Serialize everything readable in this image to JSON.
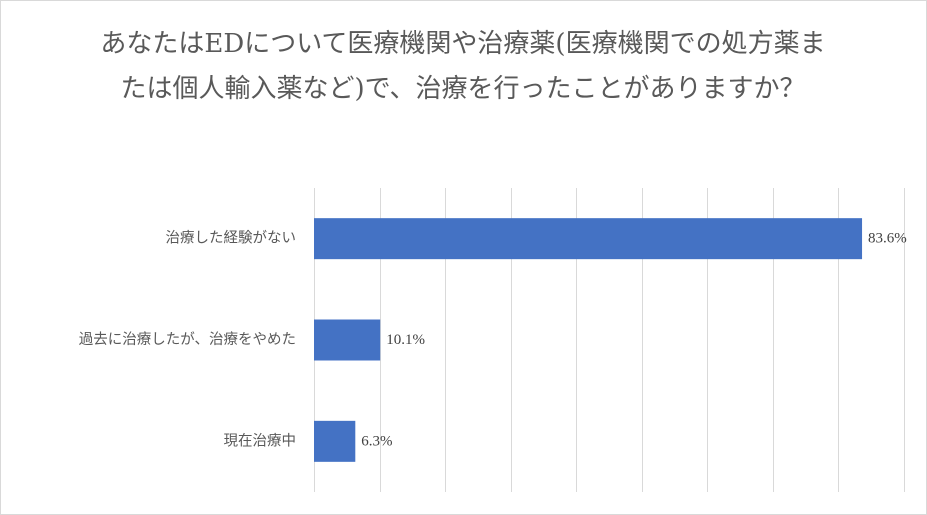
{
  "chart_data": {
    "type": "bar",
    "orientation": "horizontal",
    "title": "あなたはEDについて医療機関や治療薬(医療機関での処方薬または個人輸入薬など)で、治療を行ったことがありますか？",
    "categories": [
      "治療した経験がない",
      "過去に治療したが、治療をやめた",
      "現在治療中"
    ],
    "values": [
      83.6,
      10.1,
      6.3
    ],
    "value_labels": [
      "83.6%",
      "10.1%",
      "6.3%"
    ],
    "xlim": [
      0,
      90
    ],
    "x_gridline_step": 10,
    "grid": true,
    "legend": "none",
    "bar_color": "#4472c4",
    "grid_color": "#d9d9d9"
  }
}
